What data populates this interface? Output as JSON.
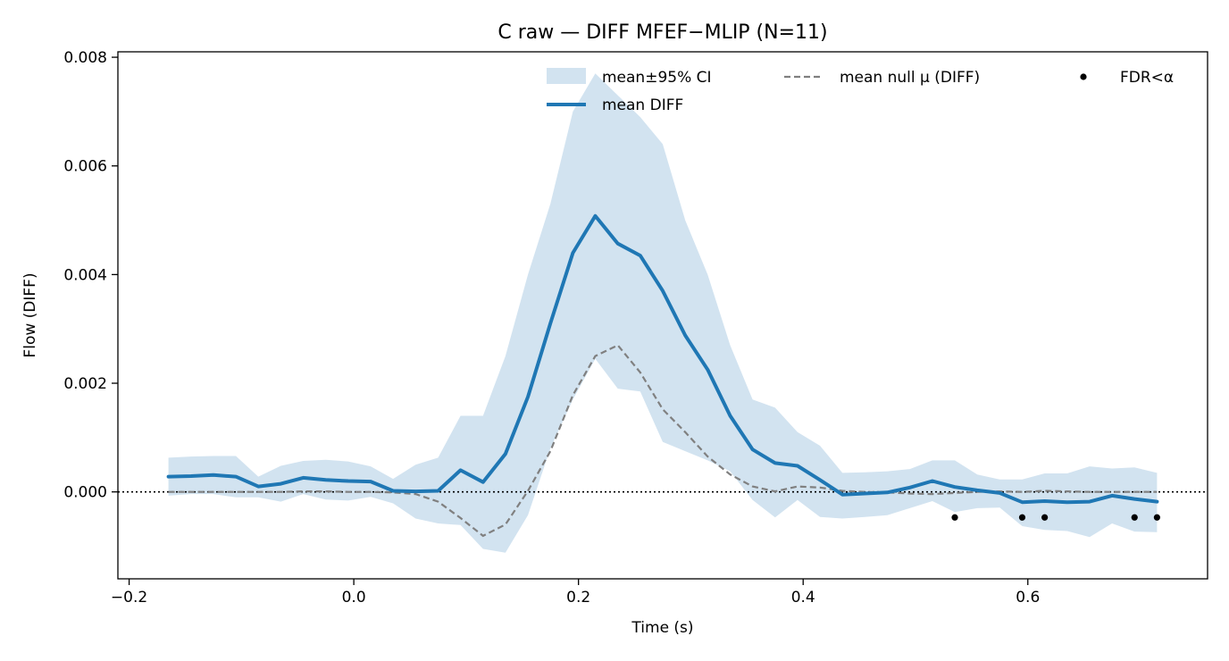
{
  "chart_data": {
    "type": "line",
    "title": "C raw — DIFF MFEF−MLIP (N=11)",
    "xlabel": "Time (s)",
    "ylabel": "Flow (DIFF)",
    "xlim": [
      -0.21,
      0.76
    ],
    "ylim": [
      -0.0016,
      0.0081
    ],
    "x_ticks": [
      -0.2,
      0.0,
      0.2,
      0.4,
      0.6
    ],
    "x_tick_labels": [
      "−0.2",
      "0.0",
      "0.2",
      "0.4",
      "0.6"
    ],
    "y_ticks": [
      0.0,
      0.002,
      0.004,
      0.006,
      0.008
    ],
    "y_tick_labels": [
      "0.000",
      "0.002",
      "0.004",
      "0.006",
      "0.008"
    ],
    "grid": false,
    "reference_line": {
      "y": 0.0,
      "style": "dotted"
    },
    "legend_position": "top-right",
    "legend": {
      "ci_label": "mean±95% CI",
      "mean_label": "mean DIFF",
      "null_label": "mean null μ (DIFF)",
      "sig_label": "FDR<α"
    },
    "colors": {
      "mean": "#1f77b4",
      "ci_fill": "#d2e3f0",
      "null": "#808080",
      "sig": "#000000"
    },
    "x": [
      -0.165,
      -0.145,
      -0.125,
      -0.105,
      -0.085,
      -0.065,
      -0.045,
      -0.025,
      -0.005,
      0.015,
      0.035,
      0.055,
      0.075,
      0.095,
      0.115,
      0.135,
      0.155,
      0.175,
      0.195,
      0.215,
      0.235,
      0.255,
      0.275,
      0.295,
      0.315,
      0.335,
      0.355,
      0.375,
      0.395,
      0.415,
      0.435,
      0.455,
      0.475,
      0.495,
      0.515,
      0.535,
      0.555,
      0.575,
      0.595,
      0.615,
      0.635,
      0.655,
      0.675,
      0.695,
      0.715
    ],
    "series": [
      {
        "role": "mean",
        "values": [
          0.00028,
          0.00029,
          0.00031,
          0.00028,
          0.0001,
          0.00015,
          0.00026,
          0.00022,
          0.0002,
          0.00019,
          2e-05,
          1e-05,
          2e-05,
          0.0004,
          0.00018,
          0.0007,
          0.00175,
          0.0031,
          0.0044,
          0.00508,
          0.00457,
          0.00435,
          0.0037,
          0.00288,
          0.00225,
          0.0014,
          0.00078,
          0.00053,
          0.00048,
          0.00022,
          -5e-05,
          -3e-05,
          -1e-05,
          8e-05,
          0.0002,
          9e-05,
          3e-05,
          -2e-05,
          -0.00019,
          -0.00017,
          -0.00019,
          -0.00018,
          -7e-05,
          -0.00013,
          -0.00018
        ]
      },
      {
        "role": "ci_upper",
        "values": [
          0.00063,
          0.00065,
          0.00066,
          0.00066,
          0.00028,
          0.00048,
          0.00057,
          0.00059,
          0.00056,
          0.00047,
          0.00024,
          0.0005,
          0.00063,
          0.0014,
          0.0014,
          0.0025,
          0.004,
          0.0053,
          0.007,
          0.0077,
          0.0073,
          0.0069,
          0.0064,
          0.005,
          0.004,
          0.0027,
          0.0017,
          0.00155,
          0.0011,
          0.00085,
          0.00035,
          0.00036,
          0.00038,
          0.00042,
          0.00058,
          0.00058,
          0.00032,
          0.00023,
          0.00023,
          0.00034,
          0.00034,
          0.00047,
          0.00043,
          0.00045,
          0.00035
        ]
      },
      {
        "role": "ci_lower",
        "values": [
          -7e-05,
          -4e-05,
          -4e-05,
          -0.0001,
          -0.0001,
          -0.00018,
          -4e-05,
          -0.00014,
          -0.00016,
          -9e-05,
          -0.00021,
          -0.00049,
          -0.00058,
          -0.00061,
          -0.00105,
          -0.00112,
          -0.00043,
          0.0008,
          0.0017,
          0.00245,
          0.0019,
          0.00185,
          0.00092,
          0.00075,
          0.00058,
          0.00038,
          -0.00015,
          -0.00047,
          -0.00015,
          -0.00046,
          -0.00049,
          -0.00046,
          -0.00043,
          -0.0003,
          -0.00017,
          -0.00037,
          -0.0003,
          -0.00029,
          -0.00063,
          -0.0007,
          -0.00072,
          -0.00083,
          -0.00058,
          -0.00073,
          -0.00074
        ]
      },
      {
        "role": "null",
        "values": [
          0.0,
          0.0,
          0.0,
          0.0,
          0.0,
          0.0,
          1e-05,
          1e-05,
          0.0,
          0.0,
          -1e-05,
          -4e-05,
          -0.00018,
          -0.00048,
          -0.00081,
          -0.0006,
          2e-05,
          0.00075,
          0.00178,
          0.0025,
          0.0027,
          0.0022,
          0.00152,
          0.0011,
          0.00065,
          0.00032,
          0.0001,
          1e-05,
          0.0001,
          8e-05,
          2e-05,
          0.0,
          -1e-05,
          -3e-05,
          -4e-05,
          -2e-05,
          0.0,
          1e-05,
          0.0,
          2e-05,
          1e-05,
          0.0,
          0.0,
          0.0,
          0.0
        ]
      }
    ],
    "significant_points": {
      "x": [
        0.535,
        0.595,
        0.615,
        0.695,
        0.715
      ],
      "y": [
        -0.00047,
        -0.00047,
        -0.00047,
        -0.00047,
        -0.00047
      ]
    }
  }
}
